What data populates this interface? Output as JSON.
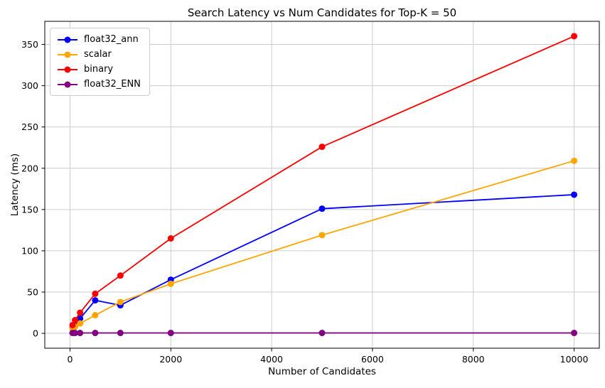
{
  "figure": {
    "title": "Search Latency vs Num Candidates for Top-K = 50",
    "xlabel": "Number of Candidates",
    "ylabel": "Latency (ms)"
  },
  "chart_data": {
    "type": "line",
    "title": "Search Latency vs Num Candidates for Top-K = 50",
    "xlabel": "Number of Candidates",
    "ylabel": "Latency (ms)",
    "x": [
      50,
      100,
      200,
      500,
      1000,
      2000,
      5000,
      10000
    ],
    "series": [
      {
        "name": "float32_ann",
        "color": "#0000ff",
        "values": [
          7,
          10,
          18,
          40,
          34,
          65,
          151,
          168
        ]
      },
      {
        "name": "scalar",
        "color": "#ffa500",
        "values": [
          6,
          8,
          12,
          22,
          38,
          60,
          119,
          209
        ]
      },
      {
        "name": "binary",
        "color": "#ff0000",
        "values": [
          10,
          16,
          25,
          48,
          70,
          115,
          226,
          360
        ]
      },
      {
        "name": "float32_ENN",
        "color": "#800080",
        "values": [
          0.5,
          0.5,
          0.5,
          0.5,
          0.5,
          0.5,
          0.5,
          0.5
        ]
      }
    ],
    "xticks": [
      0,
      2000,
      4000,
      6000,
      8000,
      10000
    ],
    "yticks": [
      0,
      50,
      100,
      150,
      200,
      250,
      300,
      350
    ],
    "xlim": [
      -500,
      10500
    ],
    "ylim": [
      -18,
      378
    ],
    "grid": true,
    "grid_color": "#cccccc",
    "frame_color": "#000000",
    "legend_position": "upper-left",
    "marker": "o",
    "line_width": 1.8,
    "marker_radius": 4.5
  }
}
